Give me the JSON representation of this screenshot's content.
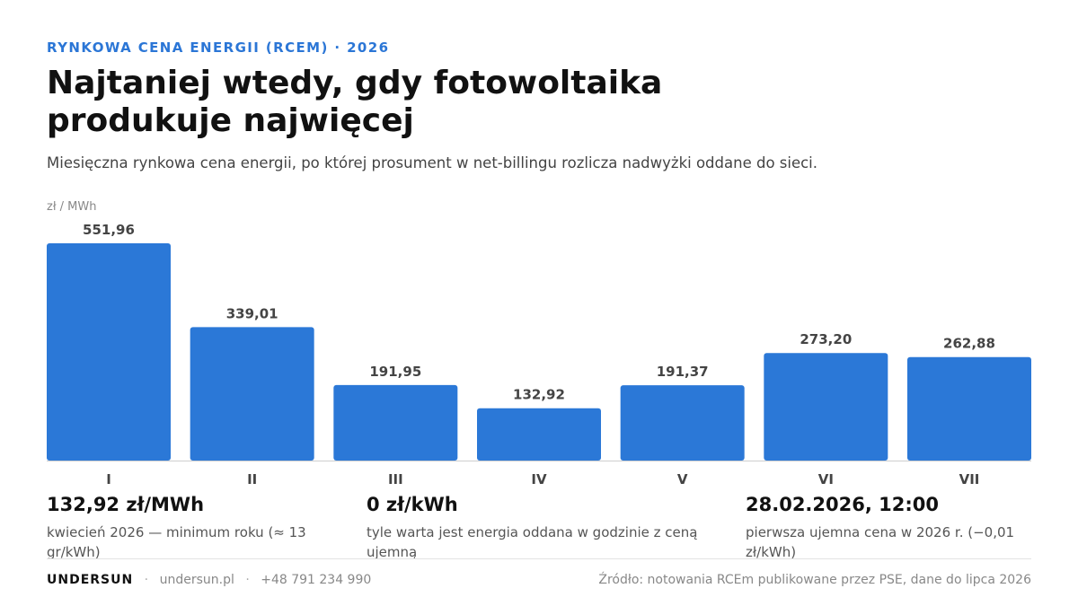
{
  "header": {
    "kicker": "RYNKOWA CENA ENERGII (RCEM) · 2026",
    "title": "Najtaniej wtedy, gdy fotowoltaika produkuje najwięcej",
    "subtitle": "Miesięczna rynkowa cena energii, po której prosument w net-billingu rozlicza nadwyżki oddane do sieci."
  },
  "colors": {
    "accent": "#2b76d6",
    "bar": "#2b78d7"
  },
  "chart_data": {
    "type": "bar",
    "ylabel": "zł / MWh",
    "categories": [
      "I",
      "II",
      "III",
      "IV",
      "V",
      "VI",
      "VII"
    ],
    "values": [
      551.96,
      339.01,
      191.95,
      132.92,
      191.37,
      273.2,
      262.88
    ],
    "value_labels": [
      "551,96",
      "339,01",
      "191,95",
      "132,92",
      "191,37",
      "273,20",
      "262,88"
    ],
    "ylim": [
      0,
      551.96
    ],
    "grid": false,
    "legend": "none"
  },
  "stats": [
    {
      "value": "132,92 zł/MWh",
      "desc": "kwiecień 2026 — minimum roku (≈ 13 gr/kWh)"
    },
    {
      "value": "0 zł/kWh",
      "desc": "tyle warta jest energia oddana w godzinie z ceną ujemną"
    },
    {
      "value": "28.02.2026, 12:00",
      "desc": "pierwsza ujemna cena w 2026 r. (−0,01 zł/kWh)"
    }
  ],
  "footer": {
    "brand": "UNDERSUN",
    "website": "undersun.pl",
    "phone": "+48 791 234 990",
    "source": "Źródło: notowania RCEm publikowane przez PSE, dane do lipca 2026"
  }
}
